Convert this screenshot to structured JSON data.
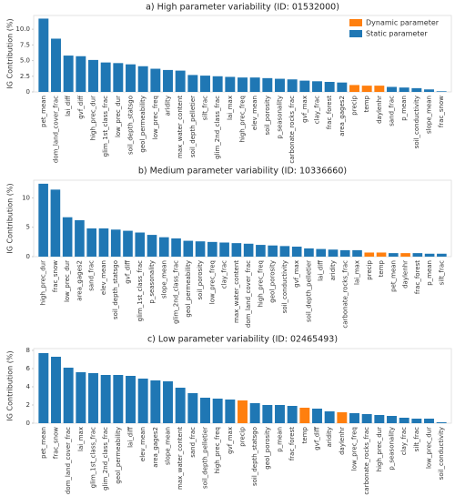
{
  "chart_data": [
    {
      "type": "bar",
      "title": "a) High parameter variability (ID: 01532000)",
      "ylabel": "IG Contribution (%)",
      "categories": [
        "pet_mean",
        "dom_land_cover_frac",
        "lai_diff",
        "gvf_diff",
        "high_prec_dur",
        "glim_1st_class_frac",
        "low_prec_dur",
        "soil_depth_statsgo",
        "geol_permeability",
        "low_prec_freq",
        "aridity",
        "max_water_content",
        "soil_depth_pelletier",
        "silt_frac",
        "glim_2nd_class_frac",
        "lai_max",
        "high_prec_freq",
        "elev_mean",
        "soil_porosity",
        "p_seasonality",
        "carbonate_rocks_frac",
        "gvf_max",
        "clay_frac",
        "frac_forest",
        "area_gages2",
        "precip",
        "temp",
        "daylenhr",
        "sand_frac",
        "p_mean",
        "soil_conductivity",
        "slope_mean",
        "frac_snow"
      ],
      "series": [
        {
          "name": "Dynamic parameter",
          "color": "#ff7f0e",
          "values": [
            null,
            null,
            null,
            null,
            null,
            null,
            null,
            null,
            null,
            null,
            null,
            null,
            null,
            null,
            null,
            null,
            null,
            null,
            null,
            null,
            null,
            null,
            null,
            null,
            null,
            1.1,
            1.0,
            1.0,
            null,
            null,
            null,
            null,
            null
          ]
        },
        {
          "name": "Static parameter",
          "color": "#1f77b4",
          "values": [
            11.7,
            8.5,
            5.8,
            5.7,
            5.1,
            4.7,
            4.6,
            4.4,
            4.1,
            3.7,
            3.5,
            3.4,
            2.7,
            2.6,
            2.5,
            2.4,
            2.3,
            2.3,
            2.2,
            2.1,
            2.0,
            1.8,
            1.7,
            1.6,
            1.5,
            null,
            null,
            null,
            0.8,
            0.7,
            0.6,
            0.4,
            0.1
          ]
        }
      ],
      "ylim": [
        0,
        12.2
      ],
      "yticks": [
        0,
        2.5,
        {
          "value": 5,
          "label": "5.0"
        },
        7.5,
        {
          "value": 10,
          "label": "10.0"
        }
      ],
      "grid": false,
      "legend": "upper right"
    },
    {
      "type": "bar",
      "title": "b) Medium parameter variability (ID: 10336660)",
      "ylabel": "IG Contribution (%)",
      "categories": [
        "high_prec_dur",
        "frac_snow",
        "low_prec_dur",
        "area_gages2",
        "sand_frac",
        "elev_mean",
        "soil_depth_statsgo",
        "gvf_diff",
        "glim_1st_class_frac",
        "p_seasonality",
        "slope_mean",
        "glim_2nd_class_frac",
        "geol_permeability",
        "soil_porosity",
        "low_prec_freq",
        "clay_frac",
        "max_water_content",
        "dom_land_cover_frac",
        "high_prec_freq",
        "geol_porosity",
        "soil_conductivity",
        "gvf_max",
        "soil_depth_pelletier",
        "lai_diff",
        "aridity",
        "carbonate_rocks_frac",
        "lai_max",
        "precip",
        "temp",
        "pet_mean",
        "daylenhr",
        "frac_forest",
        "p_mean",
        "silt_frac"
      ],
      "series": [
        {
          "color": "#ff7f0e",
          "values": [
            null,
            null,
            null,
            null,
            null,
            null,
            null,
            null,
            null,
            null,
            null,
            null,
            null,
            null,
            null,
            null,
            null,
            null,
            null,
            null,
            null,
            null,
            null,
            null,
            null,
            null,
            null,
            0.7,
            0.7,
            null,
            0.6,
            null,
            null,
            null
          ]
        },
        {
          "color": "#1f77b4",
          "values": [
            12.4,
            11.4,
            6.7,
            6.2,
            4.8,
            4.8,
            4.6,
            4.4,
            4.1,
            3.7,
            3.3,
            3.1,
            2.7,
            2.6,
            2.5,
            2.4,
            2.3,
            2.2,
            2.0,
            1.9,
            1.8,
            1.7,
            1.4,
            1.3,
            1.2,
            1.1,
            1.1,
            null,
            null,
            0.6,
            null,
            0.6,
            0.5,
            0.5
          ]
        }
      ],
      "ylim": [
        0,
        13
      ],
      "yticks": [
        0,
        5,
        10
      ],
      "grid": false
    },
    {
      "type": "bar",
      "title": "c) Low parameter variability (ID: 02465493)",
      "ylabel": "IG Contribution (%)",
      "categories": [
        "pet_mean",
        "frac_snow",
        "dom_land_cover_frac",
        "lai_max",
        "glim_1st_class_frac",
        "glim_2nd_class_frac",
        "geol_permeability",
        "lai_diff",
        "elev_mean",
        "area_gages2",
        "slope_mean",
        "max_water_content",
        "sand_frac",
        "soil_depth_pelletier",
        "high_prec_freq",
        "gvf_max",
        "precip",
        "soil_depth_statsgo",
        "geol_porosity",
        "p_mean",
        "frac_forest",
        "temp",
        "gvf_diff",
        "aridity",
        "daylenhr",
        "low_prec_freq",
        "carbonate_rocks_frac",
        "high_prec_dur",
        "p_seasonality",
        "clay_frac",
        "silt_frac",
        "low_prec_dur",
        "soil_conductivity"
      ],
      "series": [
        {
          "color": "#ff7f0e",
          "values": [
            null,
            null,
            null,
            null,
            null,
            null,
            null,
            null,
            null,
            null,
            null,
            null,
            null,
            null,
            null,
            null,
            2.5,
            null,
            null,
            null,
            null,
            1.7,
            null,
            null,
            1.2,
            null,
            null,
            null,
            null,
            null,
            null,
            null,
            null
          ]
        },
        {
          "color": "#1f77b4",
          "values": [
            7.7,
            7.3,
            6.1,
            5.6,
            5.5,
            5.3,
            5.3,
            5.2,
            4.9,
            4.7,
            4.6,
            3.9,
            3.3,
            2.8,
            2.7,
            2.6,
            null,
            2.2,
            2.0,
            2.0,
            1.9,
            null,
            1.6,
            1.3,
            null,
            1.1,
            1.0,
            0.9,
            0.8,
            0.6,
            0.5,
            0.5,
            0.1
          ]
        }
      ],
      "ylim": [
        0,
        8.2
      ],
      "yticks": [
        0,
        2,
        4,
        6,
        8
      ],
      "grid": false
    }
  ]
}
